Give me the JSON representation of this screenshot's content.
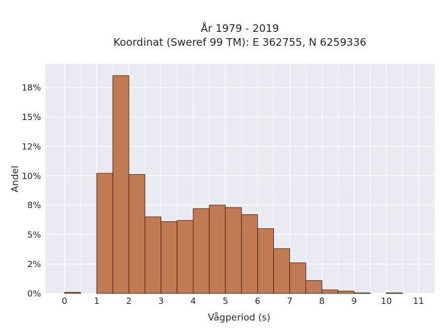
{
  "chart_data": {
    "type": "bar",
    "title_line1": "År 1979 - 2019",
    "title_line2": "Koordinat (Sweref 99 TM): E 362755, N 6259336",
    "xlabel": "Vågperiod (s)",
    "ylabel": "Andel",
    "xlim": [
      -0.6,
      11.5
    ],
    "ylim": [
      0,
      0.195
    ],
    "bin_width": 0.5,
    "bins": [
      {
        "x0": 0.0,
        "value": 0.001
      },
      {
        "x0": 0.5,
        "value": 0.0
      },
      {
        "x0": 1.0,
        "value": 0.102
      },
      {
        "x0": 1.5,
        "value": 0.185
      },
      {
        "x0": 2.0,
        "value": 0.101
      },
      {
        "x0": 2.5,
        "value": 0.065
      },
      {
        "x0": 3.0,
        "value": 0.061
      },
      {
        "x0": 3.5,
        "value": 0.062
      },
      {
        "x0": 4.0,
        "value": 0.072
      },
      {
        "x0": 4.5,
        "value": 0.075
      },
      {
        "x0": 5.0,
        "value": 0.073
      },
      {
        "x0": 5.5,
        "value": 0.067
      },
      {
        "x0": 6.0,
        "value": 0.055
      },
      {
        "x0": 6.5,
        "value": 0.038
      },
      {
        "x0": 7.0,
        "value": 0.026
      },
      {
        "x0": 7.5,
        "value": 0.011
      },
      {
        "x0": 8.0,
        "value": 0.003
      },
      {
        "x0": 8.5,
        "value": 0.002
      },
      {
        "x0": 9.0,
        "value": 0.0005
      },
      {
        "x0": 9.5,
        "value": 0.0
      },
      {
        "x0": 10.0,
        "value": 0.0005
      },
      {
        "x0": 10.5,
        "value": 0.0
      }
    ],
    "x_ticks": [
      {
        "value": 0,
        "label": "0"
      },
      {
        "value": 1,
        "label": "1"
      },
      {
        "value": 2,
        "label": "2"
      },
      {
        "value": 3,
        "label": "3"
      },
      {
        "value": 4,
        "label": "4"
      },
      {
        "value": 5,
        "label": "5"
      },
      {
        "value": 6,
        "label": "6"
      },
      {
        "value": 7,
        "label": "7"
      },
      {
        "value": 8,
        "label": "8"
      },
      {
        "value": 9,
        "label": "9"
      },
      {
        "value": 10,
        "label": "10"
      },
      {
        "value": 11,
        "label": "11"
      }
    ],
    "y_ticks": [
      {
        "value": 0.0,
        "label": "0%"
      },
      {
        "value": 0.025,
        "label": "2%"
      },
      {
        "value": 0.05,
        "label": "5%"
      },
      {
        "value": 0.075,
        "label": "8%"
      },
      {
        "value": 0.1,
        "label": "10%"
      },
      {
        "value": 0.125,
        "label": "12%"
      },
      {
        "value": 0.15,
        "label": "15%"
      },
      {
        "value": 0.175,
        "label": "18%"
      }
    ],
    "grid": true,
    "colors": {
      "bar_fill": "#c07a54",
      "bar_edge": "#3b2418",
      "plot_bg": "#eaeaf2",
      "grid": "#ffffff"
    }
  }
}
